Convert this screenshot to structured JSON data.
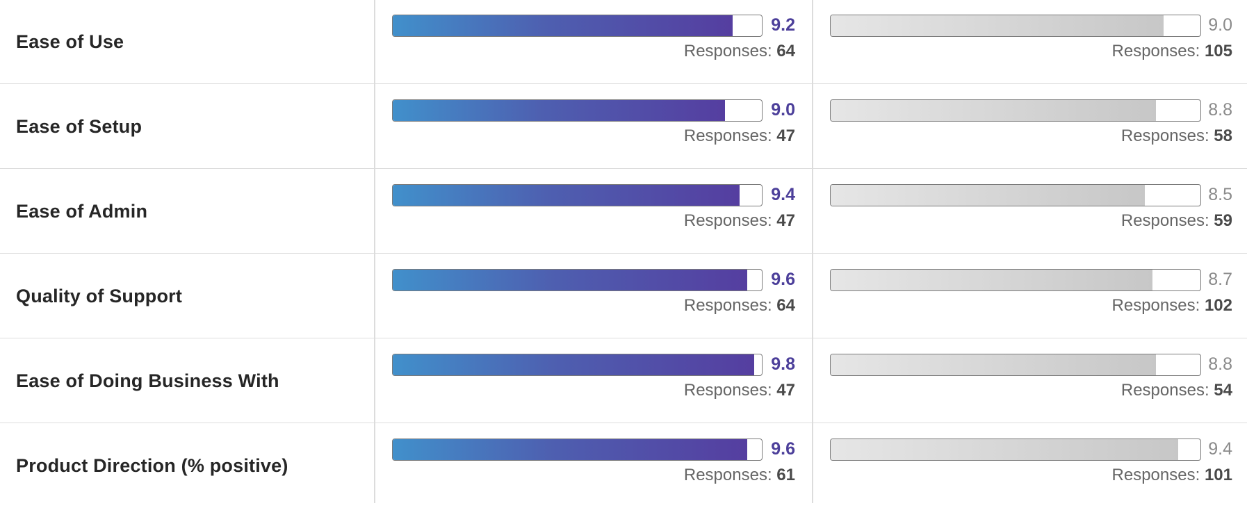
{
  "rows": [
    {
      "label": "Ease of Use",
      "primary": {
        "score": "9.2",
        "fraction": 0.92,
        "responses_label": "Responses:",
        "responses": "64"
      },
      "secondary": {
        "score": "9.0",
        "fraction": 0.9,
        "responses_label": "Responses:",
        "responses": "105"
      }
    },
    {
      "label": "Ease of Setup",
      "primary": {
        "score": "9.0",
        "fraction": 0.9,
        "responses_label": "Responses:",
        "responses": "47"
      },
      "secondary": {
        "score": "8.8",
        "fraction": 0.88,
        "responses_label": "Responses:",
        "responses": "58"
      }
    },
    {
      "label": "Ease of Admin",
      "primary": {
        "score": "9.4",
        "fraction": 0.94,
        "responses_label": "Responses:",
        "responses": "47"
      },
      "secondary": {
        "score": "8.5",
        "fraction": 0.85,
        "responses_label": "Responses:",
        "responses": "59"
      }
    },
    {
      "label": "Quality of Support",
      "primary": {
        "score": "9.6",
        "fraction": 0.96,
        "responses_label": "Responses:",
        "responses": "64"
      },
      "secondary": {
        "score": "8.7",
        "fraction": 0.87,
        "responses_label": "Responses:",
        "responses": "102"
      }
    },
    {
      "label": "Ease of Doing Business With",
      "primary": {
        "score": "9.8",
        "fraction": 0.98,
        "responses_label": "Responses:",
        "responses": "47"
      },
      "secondary": {
        "score": "8.8",
        "fraction": 0.88,
        "responses_label": "Responses:",
        "responses": "54"
      }
    },
    {
      "label": "Product Direction (% positive)",
      "primary": {
        "score": "9.6",
        "fraction": 0.96,
        "responses_label": "Responses:",
        "responses": "61"
      },
      "secondary": {
        "score": "9.4",
        "fraction": 0.94,
        "responses_label": "Responses:",
        "responses": "101"
      }
    }
  ],
  "colors": {
    "primary_gradient_start": "#4190cb",
    "primary_gradient_end": "#553ea0",
    "primary_score": "#4c3f9a",
    "secondary_bar": "#c7c7c7",
    "secondary_score": "#8a8a8a",
    "divider": "#dcdcdc"
  }
}
